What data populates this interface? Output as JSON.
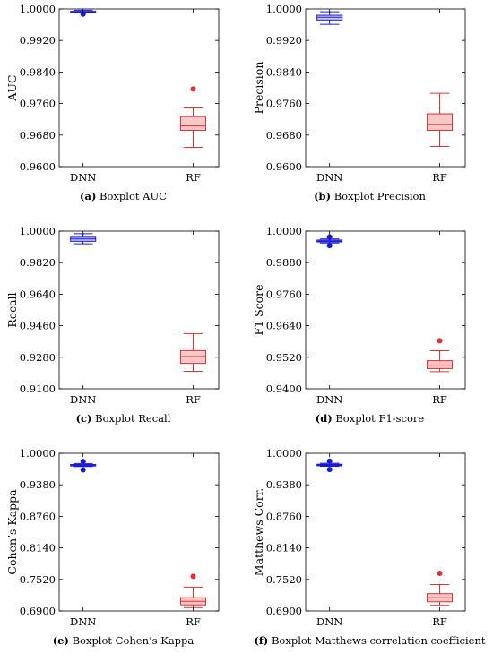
{
  "colors": {
    "dnn": "#1a1ad6",
    "dnn_fill": "#c8c8f0",
    "rf": "#e03030",
    "rf_fill": "#f7c8c8"
  },
  "chart_data": [
    {
      "type": "box",
      "caption_letter": "(a)",
      "caption_text": "Boxplot AUC",
      "ylabel": "AUC",
      "ylim": [
        0.96,
        1.0
      ],
      "yticks": [
        "0.9600",
        "0.9680",
        "0.9760",
        "0.9840",
        "0.9920",
        "1.0000"
      ],
      "categories": [
        "DNN",
        "RF"
      ],
      "series": [
        {
          "name": "DNN",
          "whisker_low": 0.999,
          "q1": 0.9991,
          "median": 0.9993,
          "q3": 0.9994,
          "whisker_high": 0.9997,
          "outliers": [
            0.9987
          ]
        },
        {
          "name": "RF",
          "whisker_low": 0.9649,
          "q1": 0.9692,
          "median": 0.9703,
          "q3": 0.9727,
          "whisker_high": 0.9749,
          "outliers": [
            0.9797
          ]
        }
      ]
    },
    {
      "type": "box",
      "caption_letter": "(b)",
      "caption_text": "Boxplot Precision",
      "ylabel": "Precision",
      "ylim": [
        0.96,
        1.0
      ],
      "yticks": [
        "0.9600",
        "0.9680",
        "0.9760",
        "0.9840",
        "0.9920",
        "1.0000"
      ],
      "categories": [
        "DNN",
        "RF"
      ],
      "series": [
        {
          "name": "DNN",
          "whisker_low": 0.9961,
          "q1": 0.9972,
          "median": 0.9979,
          "q3": 0.9984,
          "whisker_high": 0.9993,
          "outliers": []
        },
        {
          "name": "RF",
          "whisker_low": 0.9651,
          "q1": 0.9692,
          "median": 0.9707,
          "q3": 0.9734,
          "whisker_high": 0.9786,
          "outliers": []
        }
      ]
    },
    {
      "type": "box",
      "caption_letter": "(c)",
      "caption_text": "Boxplot Recall",
      "ylabel": "Recall",
      "ylim": [
        0.91,
        1.0
      ],
      "yticks": [
        "0.9100",
        "0.9280",
        "0.9460",
        "0.9640",
        "0.9820",
        "1.0000"
      ],
      "categories": [
        "DNN",
        "RF"
      ],
      "series": [
        {
          "name": "DNN",
          "whisker_low": 0.9928,
          "q1": 0.9942,
          "median": 0.9955,
          "q3": 0.9965,
          "whisker_high": 0.9985,
          "outliers": []
        },
        {
          "name": "RF",
          "whisker_low": 0.92,
          "q1": 0.9245,
          "median": 0.9284,
          "q3": 0.9318,
          "whisker_high": 0.9415,
          "outliers": []
        }
      ]
    },
    {
      "type": "box",
      "caption_letter": "(d)",
      "caption_text": "Boxplot F1-score",
      "ylabel": "F1 Score",
      "ylim": [
        0.94,
        1.0
      ],
      "yticks": [
        "0.9400",
        "0.9520",
        "0.9640",
        "0.9760",
        "0.9880",
        "1.0000"
      ],
      "categories": [
        "DNN",
        "RF"
      ],
      "series": [
        {
          "name": "DNN",
          "whisker_low": 0.9955,
          "q1": 0.9959,
          "median": 0.9962,
          "q3": 0.9966,
          "whisker_high": 0.997,
          "outliers": [
            0.9945,
            0.9978
          ]
        },
        {
          "name": "RF",
          "whisker_low": 0.9465,
          "q1": 0.9477,
          "median": 0.949,
          "q3": 0.9507,
          "whisker_high": 0.9545,
          "outliers": [
            0.9583
          ]
        }
      ]
    },
    {
      "type": "box",
      "caption_letter": "(e)",
      "caption_text": "Boxplot Cohen’s Kappa",
      "ylabel": "Cohen’s Kappa",
      "ylim": [
        0.69,
        1.0
      ],
      "yticks": [
        "0.6900",
        "0.7520",
        "0.8140",
        "0.8760",
        "0.9380",
        "1.0000"
      ],
      "categories": [
        "DNN",
        "RF"
      ],
      "series": [
        {
          "name": "DNN",
          "whisker_low": 0.974,
          "q1": 0.975,
          "median": 0.9765,
          "q3": 0.978,
          "whisker_high": 0.98,
          "outliers": [
            0.9675,
            0.984
          ]
        },
        {
          "name": "RF",
          "whisker_low": 0.6965,
          "q1": 0.702,
          "median": 0.709,
          "q3": 0.716,
          "whisker_high": 0.737,
          "outliers": [
            0.758
          ]
        }
      ]
    },
    {
      "type": "box",
      "caption_letter": "(f)",
      "caption_text": "Boxplot Matthews correlation coefficient",
      "ylabel": "Matthews Corr.",
      "ylim": [
        0.69,
        1.0
      ],
      "yticks": [
        "0.6900",
        "0.7520",
        "0.8140",
        "0.8760",
        "0.9380",
        "1.0000"
      ],
      "categories": [
        "DNN",
        "RF"
      ],
      "series": [
        {
          "name": "DNN",
          "whisker_low": 0.9745,
          "q1": 0.9755,
          "median": 0.977,
          "q3": 0.9785,
          "whisker_high": 0.9805,
          "outliers": [
            0.968,
            0.9845
          ]
        },
        {
          "name": "RF",
          "whisker_low": 0.701,
          "q1": 0.708,
          "median": 0.716,
          "q3": 0.724,
          "whisker_high": 0.742,
          "outliers": [
            0.764
          ]
        }
      ]
    }
  ]
}
